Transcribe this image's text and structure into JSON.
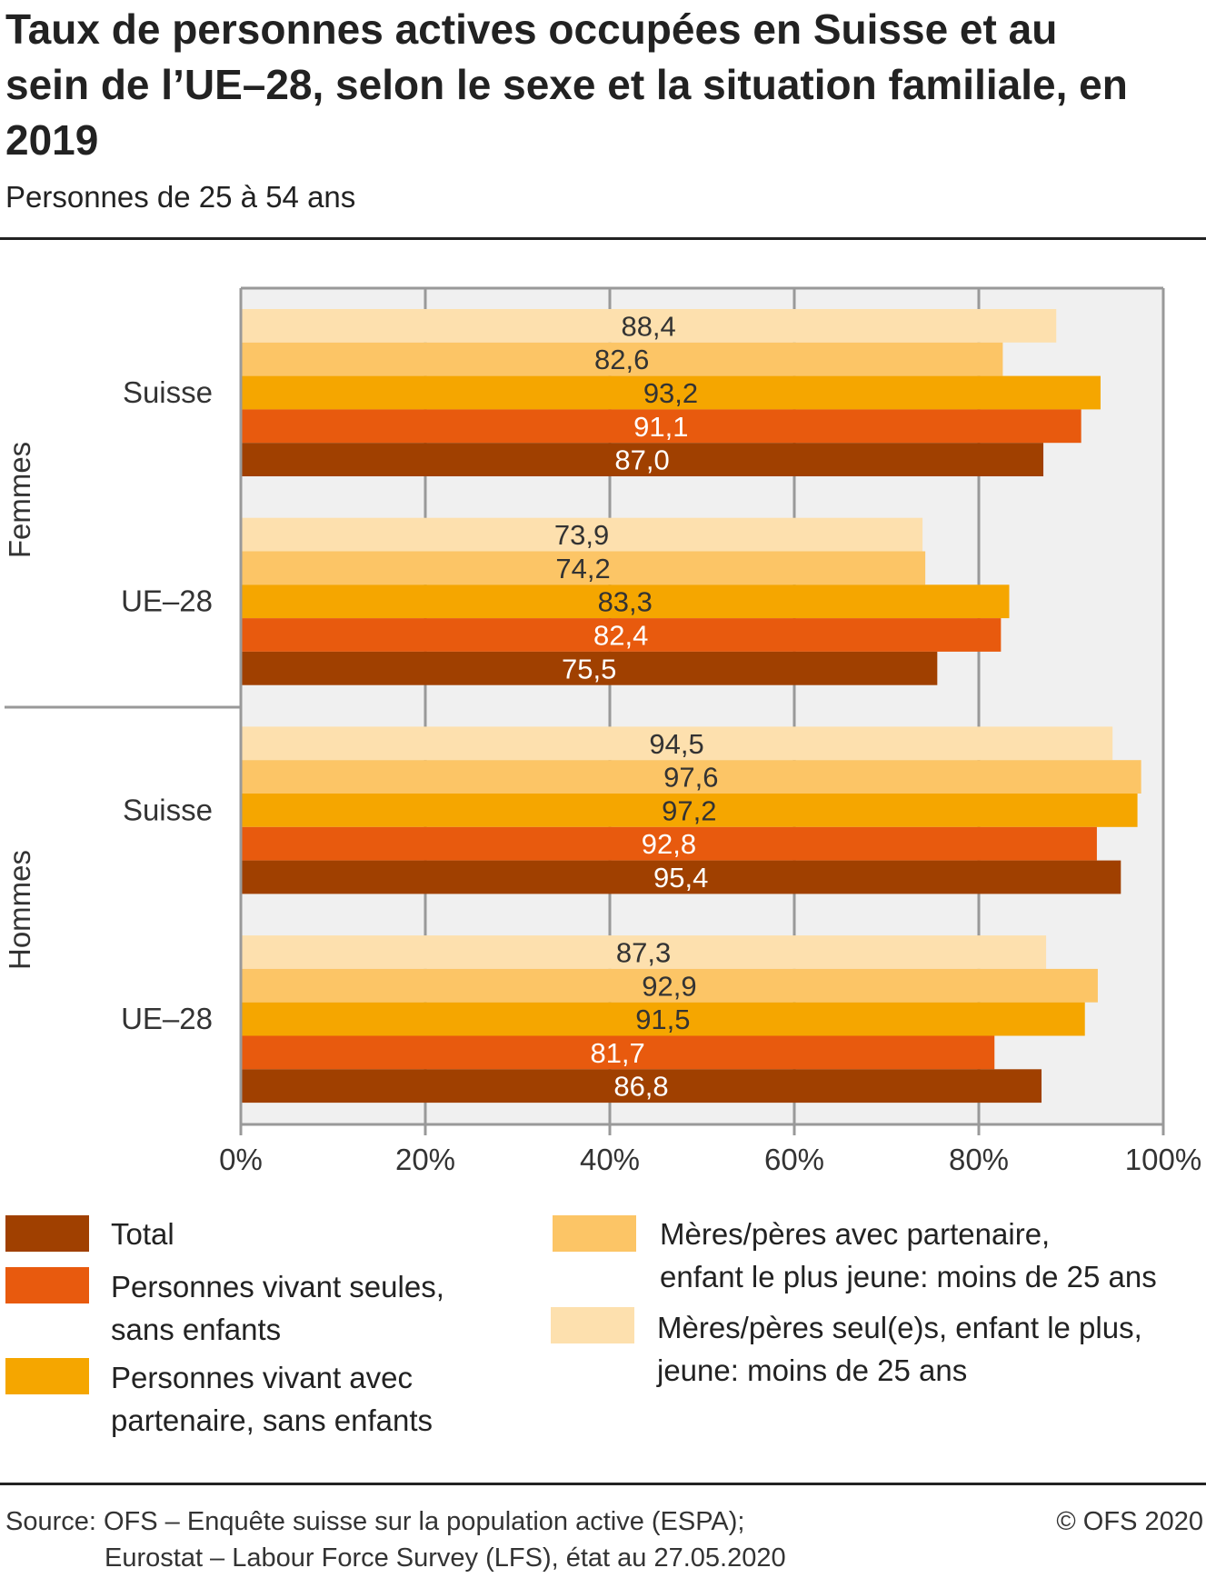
{
  "title": "Taux de personnes actives occupées en Suisse et au sein de l’UE–28, selon le sexe et la situation familiale, en 2019",
  "subtitle": "Personnes de 25 à 54 ans",
  "chart_data": {
    "type": "bar",
    "orientation": "horizontal",
    "title": "Taux de personnes actives occupées en Suisse et au sein de l’UE–28, selon le sexe et la situation familiale, en 2019",
    "subtitle": "Personnes de 25 à 54 ans",
    "xlim": [
      0,
      100
    ],
    "x_ticks": [
      "0%",
      "20%",
      "40%",
      "60%",
      "80%",
      "100%"
    ],
    "grid": true,
    "legend": "bottom",
    "groups": [
      {
        "label": "Femmes",
        "categories": [
          "Suisse",
          "UE–28"
        ]
      },
      {
        "label": "Hommes",
        "categories": [
          "Suisse",
          "UE–28"
        ]
      }
    ],
    "categories": [
      "Femmes – Suisse",
      "Femmes – UE–28",
      "Hommes – Suisse",
      "Hommes – UE–28"
    ],
    "series": [
      {
        "name": "Mères/pères seul(e)s, enfant le plus, jeune: moins de 25 ans",
        "color": "#fde0ae",
        "values": [
          88.4,
          73.9,
          94.5,
          87.3
        ]
      },
      {
        "name": "Mères/pères avec partenaire, enfant le plus jeune: moins de 25 ans",
        "color": "#fcc566",
        "values": [
          82.6,
          74.2,
          97.6,
          92.9
        ]
      },
      {
        "name": "Personnes vivant avec partenaire, sans enfants",
        "color": "#f5a600",
        "values": [
          93.2,
          83.3,
          97.2,
          91.5
        ]
      },
      {
        "name": "Personnes vivant seules, sans enfants",
        "color": "#e85a0e",
        "values": [
          91.1,
          82.4,
          92.8,
          81.7
        ]
      },
      {
        "name": "Total",
        "color": "#a04000",
        "values": [
          87.0,
          75.5,
          95.4,
          86.8
        ]
      }
    ]
  },
  "legend": {
    "left": [
      {
        "lines": [
          "Total"
        ],
        "color": "#a04000"
      },
      {
        "lines": [
          "Personnes vivant seules,",
          "sans enfants"
        ],
        "color": "#e85a0e"
      },
      {
        "lines": [
          "Personnes vivant avec",
          "partenaire, sans enfants"
        ],
        "color": "#f5a600"
      }
    ],
    "right": [
      {
        "lines": [
          "Mères/pères avec partenaire,",
          "enfant le plus jeune: moins de 25 ans"
        ],
        "color": "#fcc566"
      },
      {
        "lines": [
          "Mères/pères seul(e)s, enfant le plus,",
          "jeune: moins de 25 ans"
        ],
        "color": "#fde0ae"
      }
    ]
  },
  "source": {
    "line1": "Source: OFS – Enquête suisse sur la population active (ESPA);",
    "line2": "Eurostat – Labour Force Survey (LFS), état au 27.05.2020",
    "copyright": "© OFS 2020"
  }
}
